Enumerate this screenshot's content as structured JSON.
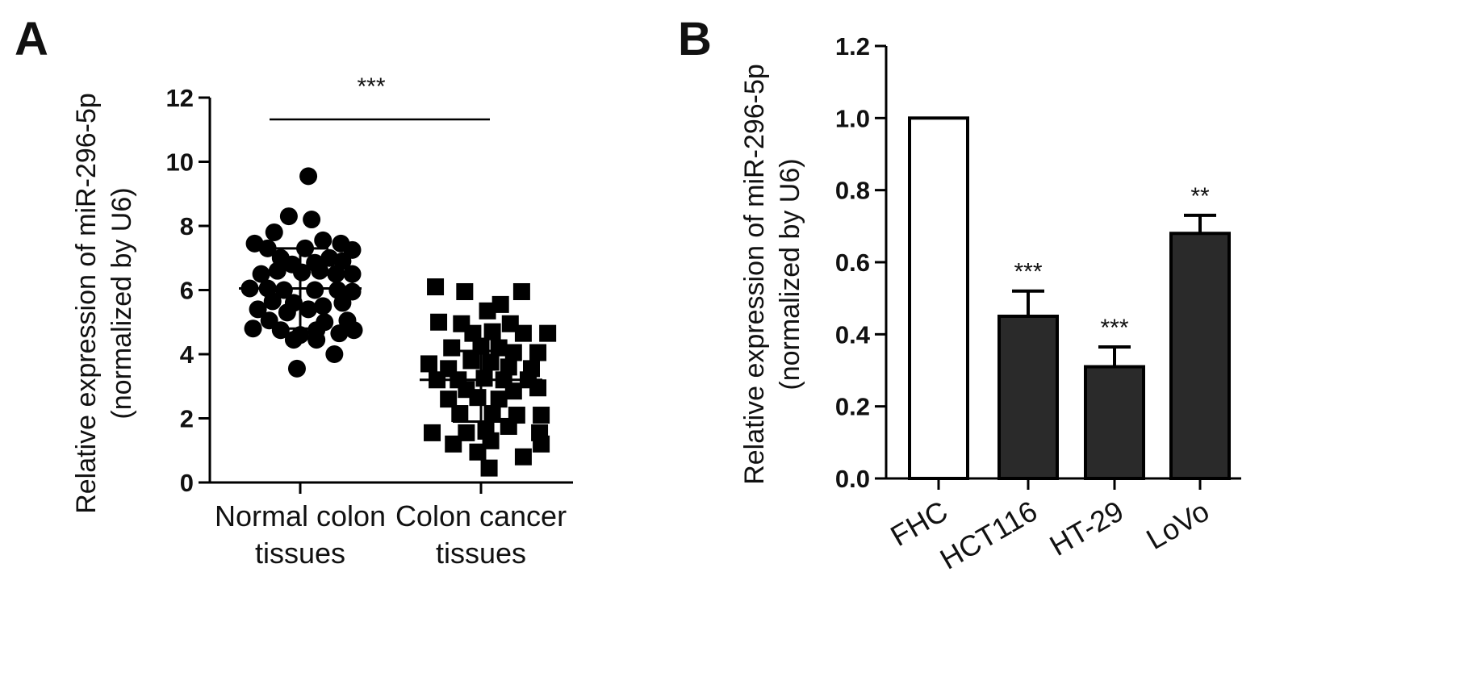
{
  "chart_data": [
    {
      "panel": "A",
      "type": "scatter",
      "ylabel": [
        "Relative expression of  miR-296-5p",
        "(normalized by U6)"
      ],
      "ylim": [
        0,
        12
      ],
      "yticks": [
        "0",
        "2",
        "4",
        "6",
        "8",
        "10",
        "12"
      ],
      "categories": [
        [
          "Normal colon",
          "tissues"
        ],
        [
          "Colon cancer",
          "tissues"
        ]
      ],
      "significance": "***",
      "colors": {
        "points": "#000000",
        "lines": "#000000"
      },
      "series": [
        {
          "marker": "circle",
          "mean": 6.05,
          "sd_upper": 7.3,
          "sd_lower": 4.8,
          "points": [
            [
              0.05,
              9.55
            ],
            [
              -0.07,
              8.3
            ],
            [
              0.07,
              8.2
            ],
            [
              -0.16,
              7.8
            ],
            [
              0.14,
              7.55
            ],
            [
              -0.28,
              7.45
            ],
            [
              0.25,
              7.45
            ],
            [
              -0.2,
              7.3
            ],
            [
              0.03,
              7.3
            ],
            [
              0.32,
              7.25
            ],
            [
              -0.12,
              7.0
            ],
            [
              -0.05,
              6.8
            ],
            [
              0.09,
              6.85
            ],
            [
              0.18,
              7.0
            ],
            [
              0.26,
              6.9
            ],
            [
              -0.24,
              6.5
            ],
            [
              -0.14,
              6.6
            ],
            [
              0.01,
              6.55
            ],
            [
              0.12,
              6.6
            ],
            [
              0.22,
              6.5
            ],
            [
              0.32,
              6.5
            ],
            [
              -0.31,
              6.05
            ],
            [
              -0.2,
              6.05
            ],
            [
              -0.1,
              6.0
            ],
            [
              0.09,
              6.0
            ],
            [
              0.23,
              6.0
            ],
            [
              0.32,
              5.95
            ],
            [
              -0.17,
              5.65
            ],
            [
              -0.04,
              5.6
            ],
            [
              0.14,
              5.5
            ],
            [
              0.26,
              5.6
            ],
            [
              -0.26,
              5.4
            ],
            [
              -0.08,
              5.3
            ],
            [
              0.05,
              5.4
            ],
            [
              -0.19,
              5.05
            ],
            [
              0.15,
              5.0
            ],
            [
              0.29,
              5.05
            ],
            [
              -0.29,
              4.8
            ],
            [
              -0.12,
              4.75
            ],
            [
              0.0,
              4.6
            ],
            [
              0.1,
              4.75
            ],
            [
              0.24,
              4.65
            ],
            [
              0.33,
              4.75
            ],
            [
              -0.04,
              4.45
            ],
            [
              0.1,
              4.45
            ],
            [
              0.21,
              4.0
            ],
            [
              -0.02,
              3.55
            ]
          ]
        },
        {
          "marker": "square",
          "mean": 3.2,
          "sd_upper": 4.1,
          "sd_lower": 1.9,
          "points": [
            [
              -0.28,
              6.1
            ],
            [
              -0.1,
              5.95
            ],
            [
              0.12,
              5.55
            ],
            [
              0.25,
              5.95
            ],
            [
              0.04,
              5.35
            ],
            [
              -0.26,
              5.0
            ],
            [
              -0.12,
              4.95
            ],
            [
              0.18,
              4.95
            ],
            [
              -0.05,
              4.65
            ],
            [
              0.07,
              4.7
            ],
            [
              0.26,
              4.65
            ],
            [
              0.41,
              4.65
            ],
            [
              -0.18,
              4.2
            ],
            [
              0.0,
              4.25
            ],
            [
              0.11,
              4.2
            ],
            [
              0.2,
              4.05
            ],
            [
              0.35,
              4.05
            ],
            [
              -0.32,
              3.7
            ],
            [
              -0.06,
              3.8
            ],
            [
              0.06,
              3.75
            ],
            [
              0.17,
              3.6
            ],
            [
              -0.2,
              3.55
            ],
            [
              0.31,
              3.55
            ],
            [
              -0.27,
              3.2
            ],
            [
              -0.14,
              3.2
            ],
            [
              0.02,
              3.25
            ],
            [
              0.14,
              3.2
            ],
            [
              0.29,
              3.2
            ],
            [
              -0.09,
              2.9
            ],
            [
              0.2,
              2.85
            ],
            [
              0.35,
              2.95
            ],
            [
              -0.2,
              2.6
            ],
            [
              -0.02,
              2.65
            ],
            [
              0.11,
              2.6
            ],
            [
              -0.13,
              2.15
            ],
            [
              0.07,
              2.15
            ],
            [
              0.22,
              2.1
            ],
            [
              0.37,
              2.1
            ],
            [
              -0.3,
              1.55
            ],
            [
              -0.09,
              1.55
            ],
            [
              0.03,
              1.6
            ],
            [
              0.17,
              1.75
            ],
            [
              0.36,
              1.55
            ],
            [
              -0.17,
              1.2
            ],
            [
              0.06,
              1.3
            ],
            [
              0.37,
              1.2
            ],
            [
              -0.02,
              0.95
            ],
            [
              0.26,
              0.8
            ],
            [
              0.05,
              0.45
            ]
          ]
        }
      ]
    },
    {
      "panel": "B",
      "type": "bar",
      "ylabel": [
        "Relative expression of  miR-296-5p",
        "(normalized by U6)"
      ],
      "ylim": [
        0,
        1.2
      ],
      "yticks": [
        "0.0",
        "0.2",
        "0.4",
        "0.6",
        "0.8",
        "1.0",
        "1.2"
      ],
      "categories": [
        "FHC",
        "HCT116",
        "HT-29",
        "LoVo"
      ],
      "values": [
        1.0,
        0.45,
        0.31,
        0.68
      ],
      "errors": [
        0,
        0.07,
        0.055,
        0.05
      ],
      "significance": [
        "",
        "***",
        "***",
        "**"
      ],
      "colors": {
        "control": "#ffffff",
        "bars": "#2a2a2a",
        "outline": "#000000"
      }
    }
  ]
}
